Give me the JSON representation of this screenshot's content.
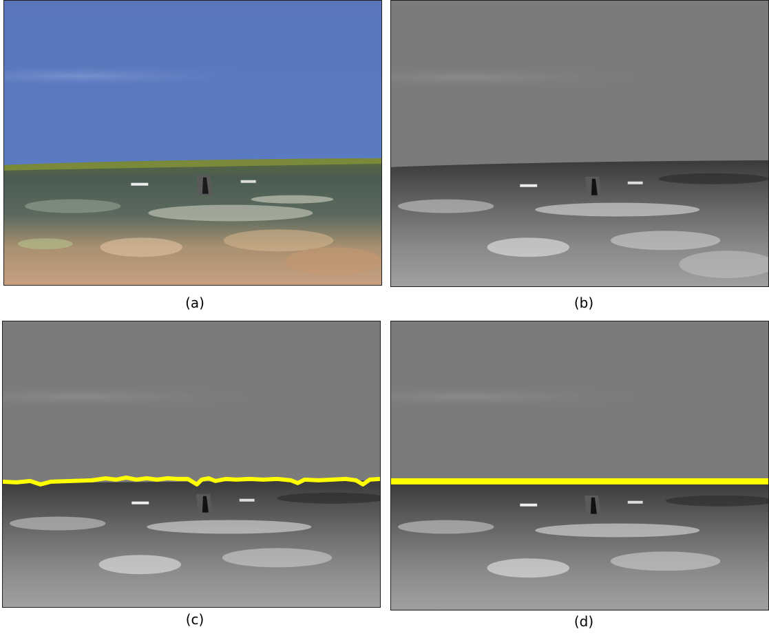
{
  "panels": [
    {
      "id": "a",
      "caption": "(a)",
      "style": "color-aerial",
      "horizon_line": "none"
    },
    {
      "id": "b",
      "caption": "(b)",
      "style": "grayscale",
      "horizon_line": "none"
    },
    {
      "id": "c",
      "caption": "(c)",
      "style": "grayscale",
      "horizon_line": "detected-jagged"
    },
    {
      "id": "d",
      "caption": "(d)",
      "style": "grayscale",
      "horizon_line": "fitted-straight"
    }
  ],
  "colors": {
    "sky_blue": "#5a78bf",
    "sky_gray": "#7b7b7b",
    "horizon_yellow": "#ffff00",
    "terrain_green": "#4d5e4a",
    "terrain_tan": "#c8a07a"
  }
}
